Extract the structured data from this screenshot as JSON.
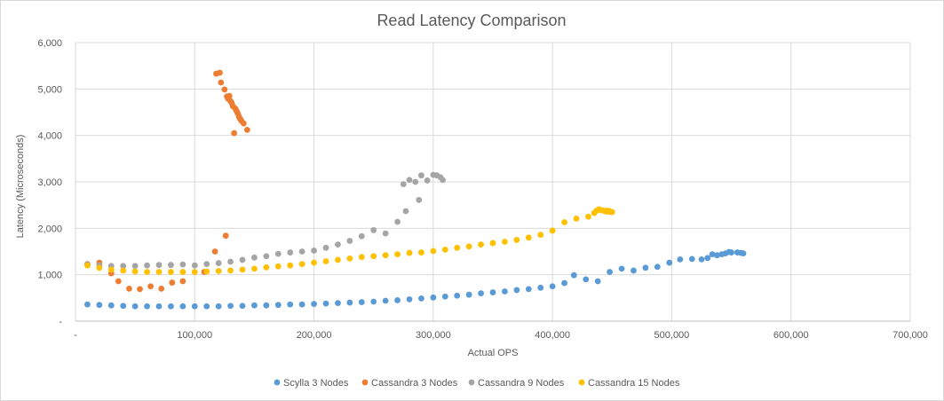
{
  "chart_data": {
    "type": "scatter",
    "title": "Read Latency Comparison",
    "xlabel": "Actual OPS",
    "ylabel": "Latency (Microseconds)",
    "xlim": [
      0,
      700000
    ],
    "ylim": [
      0,
      6000
    ],
    "x_ticks": [
      0,
      100000,
      200000,
      300000,
      400000,
      500000,
      600000,
      700000
    ],
    "x_tick_labels": [
      "-",
      "100,000",
      "200,000",
      "300,000",
      "400,000",
      "500,000",
      "600,000",
      "700,000"
    ],
    "y_ticks": [
      0,
      1000,
      2000,
      3000,
      4000,
      5000,
      6000
    ],
    "y_tick_labels": [
      "-",
      "1,000",
      "2,000",
      "3,000",
      "4,000",
      "5,000",
      "6,000"
    ],
    "grid": "vertical and horizontal",
    "legend_position": "bottom",
    "series": [
      {
        "name": "Scylla 3 Nodes",
        "color": "#5b9bd5",
        "points": [
          [
            10000,
            360
          ],
          [
            20000,
            350
          ],
          [
            30000,
            340
          ],
          [
            40000,
            330
          ],
          [
            50000,
            320
          ],
          [
            60000,
            320
          ],
          [
            70000,
            320
          ],
          [
            80000,
            320
          ],
          [
            90000,
            320
          ],
          [
            100000,
            320
          ],
          [
            110000,
            320
          ],
          [
            120000,
            320
          ],
          [
            130000,
            330
          ],
          [
            140000,
            330
          ],
          [
            150000,
            340
          ],
          [
            160000,
            340
          ],
          [
            170000,
            350
          ],
          [
            180000,
            360
          ],
          [
            190000,
            360
          ],
          [
            200000,
            370
          ],
          [
            210000,
            380
          ],
          [
            220000,
            390
          ],
          [
            230000,
            400
          ],
          [
            240000,
            410
          ],
          [
            250000,
            420
          ],
          [
            260000,
            440
          ],
          [
            270000,
            450
          ],
          [
            280000,
            470
          ],
          [
            290000,
            490
          ],
          [
            300000,
            510
          ],
          [
            310000,
            530
          ],
          [
            320000,
            550
          ],
          [
            330000,
            570
          ],
          [
            340000,
            600
          ],
          [
            350000,
            620
          ],
          [
            360000,
            640
          ],
          [
            370000,
            670
          ],
          [
            380000,
            690
          ],
          [
            390000,
            720
          ],
          [
            400000,
            750
          ],
          [
            410000,
            820
          ],
          [
            418000,
            990
          ],
          [
            428000,
            900
          ],
          [
            438000,
            860
          ],
          [
            448000,
            1060
          ],
          [
            458000,
            1130
          ],
          [
            468000,
            1090
          ],
          [
            478000,
            1150
          ],
          [
            488000,
            1170
          ],
          [
            498000,
            1260
          ],
          [
            507000,
            1330
          ],
          [
            517000,
            1340
          ],
          [
            525000,
            1330
          ],
          [
            530000,
            1360
          ],
          [
            534000,
            1440
          ],
          [
            538000,
            1420
          ],
          [
            542000,
            1440
          ],
          [
            545000,
            1460
          ],
          [
            548000,
            1490
          ],
          [
            550000,
            1480
          ],
          [
            555000,
            1480
          ],
          [
            558000,
            1470
          ],
          [
            560000,
            1460
          ]
        ]
      },
      {
        "name": "Cassandra 3 Nodes",
        "color": "#ed7d31",
        "points": [
          [
            10000,
            1230
          ],
          [
            20000,
            1260
          ],
          [
            30000,
            1030
          ],
          [
            36000,
            860
          ],
          [
            45000,
            700
          ],
          [
            54000,
            690
          ],
          [
            63000,
            750
          ],
          [
            72000,
            700
          ],
          [
            81000,
            830
          ],
          [
            90000,
            860
          ],
          [
            108000,
            1060
          ],
          [
            117000,
            1500
          ],
          [
            126000,
            1840
          ],
          [
            118000,
            5330
          ],
          [
            121000,
            5350
          ],
          [
            122000,
            5140
          ],
          [
            125000,
            4990
          ],
          [
            127000,
            4840
          ],
          [
            128000,
            4790
          ],
          [
            129000,
            4850
          ],
          [
            130000,
            4740
          ],
          [
            131000,
            4700
          ],
          [
            132000,
            4630
          ],
          [
            134000,
            4580
          ],
          [
            135000,
            4530
          ],
          [
            136000,
            4480
          ],
          [
            137000,
            4410
          ],
          [
            138000,
            4360
          ],
          [
            139000,
            4320
          ],
          [
            141000,
            4260
          ],
          [
            144000,
            4120
          ],
          [
            133000,
            4050
          ]
        ]
      },
      {
        "name": "Cassandra 9 Nodes",
        "color": "#a5a5a5",
        "points": [
          [
            10000,
            1220
          ],
          [
            20000,
            1200
          ],
          [
            30000,
            1190
          ],
          [
            40000,
            1190
          ],
          [
            50000,
            1190
          ],
          [
            60000,
            1200
          ],
          [
            70000,
            1210
          ],
          [
            80000,
            1210
          ],
          [
            90000,
            1220
          ],
          [
            100000,
            1200
          ],
          [
            110000,
            1230
          ],
          [
            120000,
            1250
          ],
          [
            130000,
            1280
          ],
          [
            140000,
            1320
          ],
          [
            150000,
            1370
          ],
          [
            160000,
            1400
          ],
          [
            170000,
            1450
          ],
          [
            180000,
            1480
          ],
          [
            190000,
            1500
          ],
          [
            200000,
            1520
          ],
          [
            210000,
            1580
          ],
          [
            220000,
            1650
          ],
          [
            230000,
            1730
          ],
          [
            240000,
            1830
          ],
          [
            250000,
            1960
          ],
          [
            260000,
            1890
          ],
          [
            270000,
            2140
          ],
          [
            277000,
            2370
          ],
          [
            275000,
            2950
          ],
          [
            280000,
            3040
          ],
          [
            285000,
            3000
          ],
          [
            288000,
            2610
          ],
          [
            290000,
            3140
          ],
          [
            295000,
            3030
          ],
          [
            300000,
            3150
          ],
          [
            303000,
            3140
          ],
          [
            306000,
            3100
          ],
          [
            308000,
            3040
          ]
        ]
      },
      {
        "name": "Cassandra 15 Nodes",
        "color": "#ffc000",
        "points": [
          [
            10000,
            1200
          ],
          [
            20000,
            1150
          ],
          [
            30000,
            1110
          ],
          [
            40000,
            1090
          ],
          [
            50000,
            1070
          ],
          [
            60000,
            1060
          ],
          [
            70000,
            1060
          ],
          [
            80000,
            1060
          ],
          [
            90000,
            1060
          ],
          [
            100000,
            1060
          ],
          [
            110000,
            1070
          ],
          [
            120000,
            1080
          ],
          [
            130000,
            1090
          ],
          [
            140000,
            1110
          ],
          [
            150000,
            1130
          ],
          [
            160000,
            1160
          ],
          [
            170000,
            1180
          ],
          [
            180000,
            1200
          ],
          [
            190000,
            1230
          ],
          [
            200000,
            1260
          ],
          [
            210000,
            1290
          ],
          [
            220000,
            1320
          ],
          [
            230000,
            1350
          ],
          [
            240000,
            1380
          ],
          [
            250000,
            1400
          ],
          [
            260000,
            1420
          ],
          [
            270000,
            1440
          ],
          [
            280000,
            1470
          ],
          [
            290000,
            1480
          ],
          [
            300000,
            1510
          ],
          [
            310000,
            1540
          ],
          [
            320000,
            1580
          ],
          [
            330000,
            1610
          ],
          [
            340000,
            1650
          ],
          [
            350000,
            1680
          ],
          [
            360000,
            1710
          ],
          [
            370000,
            1750
          ],
          [
            380000,
            1800
          ],
          [
            390000,
            1860
          ],
          [
            400000,
            1950
          ],
          [
            410000,
            2130
          ],
          [
            420000,
            2210
          ],
          [
            430000,
            2250
          ],
          [
            435000,
            2330
          ],
          [
            437000,
            2380
          ],
          [
            439000,
            2410
          ],
          [
            441000,
            2390
          ],
          [
            443000,
            2380
          ],
          [
            445000,
            2360
          ],
          [
            446000,
            2380
          ],
          [
            447000,
            2360
          ],
          [
            448000,
            2370
          ],
          [
            449000,
            2350
          ],
          [
            450000,
            2350
          ]
        ]
      }
    ]
  }
}
